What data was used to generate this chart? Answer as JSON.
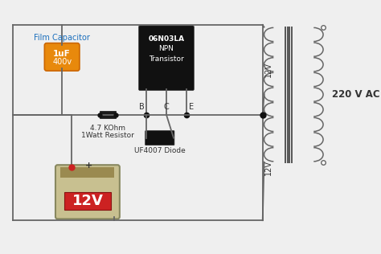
{
  "bg_color": "#efefef",
  "transistor_label": [
    "06N03LA",
    "NPN",
    "Transistor"
  ],
  "transistor_color": "#111111",
  "capacitor_label": [
    "1uF",
    "400v"
  ],
  "capacitor_color": "#e8890c",
  "film_cap_text": "Film Capacitor",
  "resistor_text": [
    "4.7 KOhm",
    "1Watt Resistor"
  ],
  "diode_label": "UF4007 Diode",
  "diode_color": "#111111",
  "battery_label": "12V",
  "voltage_label_upper": "12V",
  "voltage_label_lower": "12V",
  "ac_label": "220 V AC",
  "wire_color": "#666666",
  "dot_color": "#111111",
  "node_labels": [
    "B",
    "C",
    "E"
  ],
  "text_color_blue": "#1a6fbd",
  "text_color_black": "#333333"
}
